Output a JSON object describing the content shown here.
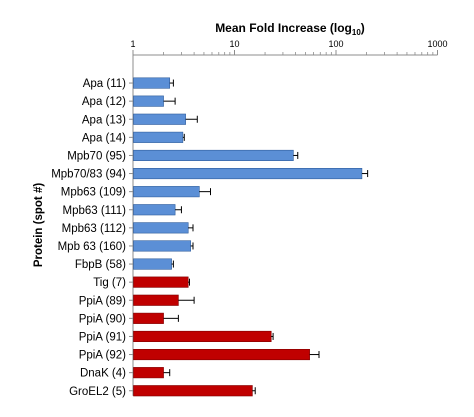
{
  "chart_data": {
    "type": "bar",
    "orientation": "horizontal",
    "title_main": "Mean Fold Increase (log",
    "title_sub": "10",
    "title_close": ")",
    "ylabel": "Protein  (spot #)",
    "xscale": "log",
    "xlim": [
      1,
      1000
    ],
    "xticks": [
      "1",
      "10",
      "100",
      "1000"
    ],
    "xtick_values": [
      1,
      10,
      100,
      1000
    ],
    "axis_position": "top",
    "grid": false,
    "colors": {
      "blue": "#5b8fd6",
      "blue_edge": "#2f5d9c",
      "red": "#c00000",
      "red_edge": "#800000",
      "axis": "#8c8c8c"
    },
    "categories": [
      "Apa (11)",
      "Apa (12)",
      "Apa (13)",
      "Apa (14)",
      "Mpb70 (95)",
      "Mpb70/83 (94)",
      "Mpb63 (109)",
      "Mpb63 (111)",
      "Mpb63 (112)",
      "Mpb 63 (160)",
      "FbpB (58)",
      "Tig (7)",
      "PpiA (89)",
      "PpiA (90)",
      "PpiA (91)",
      "PpiA (92)",
      "DnaK (4)",
      "GroEL2 (5)"
    ],
    "values": [
      2.3,
      2.0,
      3.3,
      3.1,
      38,
      180,
      4.5,
      2.6,
      3.5,
      3.7,
      2.4,
      3.5,
      2.8,
      2.0,
      23,
      55,
      2.0,
      15
    ],
    "error_upper": [
      2.5,
      2.6,
      4.3,
      3.2,
      42,
      205,
      5.8,
      3.0,
      3.9,
      3.9,
      2.5,
      3.6,
      4.0,
      2.8,
      24,
      68,
      2.3,
      16
    ],
    "bar_colors": [
      "blue",
      "blue",
      "blue",
      "blue",
      "blue",
      "blue",
      "blue",
      "blue",
      "blue",
      "blue",
      "blue",
      "red",
      "red",
      "red",
      "red",
      "red",
      "red",
      "red"
    ]
  }
}
